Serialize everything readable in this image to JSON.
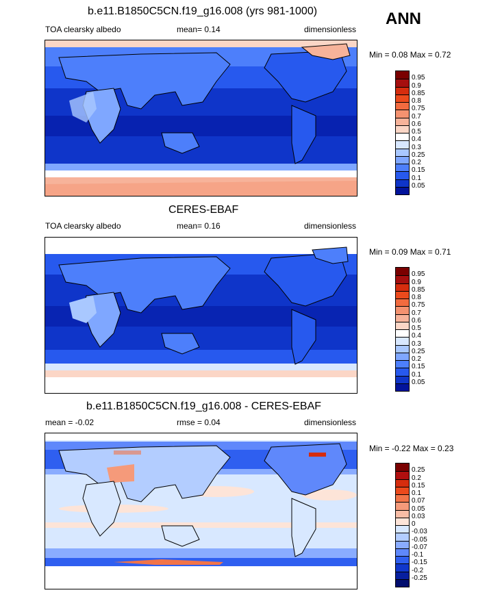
{
  "season_label": "ANN",
  "panels": [
    {
      "title": "b.e11.B1850C5CN.f19_g16.008 (yrs 981-1000)",
      "left_label": "TOA clearsky albedo",
      "mean_text": "mean=   0.14",
      "right_label": "dimensionless",
      "minmax_text": "Min =   0.08 Max =   0.72",
      "levels": [
        "0.95",
        "0.9",
        "0.85",
        "0.8",
        "0.75",
        "0.7",
        "0.6",
        "0.5",
        "0.4",
        "0.3",
        "0.25",
        "0.2",
        "0.15",
        "0.1",
        "0.05"
      ],
      "colors": [
        "#7a0000",
        "#a50f0f",
        "#d62d0e",
        "#ec4a1c",
        "#f26b3f",
        "#f49270",
        "#f7b39a",
        "#fbd6c6",
        "#ffffff",
        "#d8e8ff",
        "#a9c8ff",
        "#7fa7ff",
        "#4d7ffb",
        "#2759ee",
        "#0f35c9",
        "#02139b"
      ]
    },
    {
      "title": "CERES-EBAF",
      "left_label": "TOA clearsky albedo",
      "mean_text": "mean=   0.16",
      "right_label": "dimensionless",
      "minmax_text": "Min =   0.09 Max =   0.71",
      "levels": [
        "0.95",
        "0.9",
        "0.85",
        "0.8",
        "0.75",
        "0.7",
        "0.6",
        "0.5",
        "0.4",
        "0.3",
        "0.25",
        "0.2",
        "0.15",
        "0.1",
        "0.05"
      ],
      "colors": [
        "#7a0000",
        "#a50f0f",
        "#d62d0e",
        "#ec4a1c",
        "#f26b3f",
        "#f49270",
        "#f7b39a",
        "#fbd6c6",
        "#ffffff",
        "#d8e8ff",
        "#a9c8ff",
        "#7fa7ff",
        "#4d7ffb",
        "#2759ee",
        "#0f35c9",
        "#02139b"
      ]
    },
    {
      "title": "b.e11.B1850C5CN.f19_g16.008 - CERES-EBAF",
      "left_label": "mean =   -0.02",
      "mean_text": "rmse =   0.04",
      "right_label": "dimensionless",
      "minmax_text": "Min =   -0.22 Max =   0.23",
      "levels": [
        "0.25",
        "0.2",
        "0.15",
        "0.1",
        "0.07",
        "0.05",
        "0.03",
        "0",
        "-0.03",
        "-0.05",
        "-0.07",
        "-0.1",
        "-0.15",
        "-0.2",
        "-0.25"
      ],
      "colors": [
        "#7a0000",
        "#b00f0f",
        "#d62d0e",
        "#ec4a1c",
        "#f27448",
        "#f59a7a",
        "#f8bda6",
        "#fde4d8",
        "#d8e8ff",
        "#b3cdff",
        "#8aacff",
        "#5f88fb",
        "#2f5ff0",
        "#1037cc",
        "#071f9f",
        "#010d6e"
      ]
    }
  ],
  "chart_data": [
    {
      "type": "heatmap",
      "title": "b.e11.B1850C5CN.f19_g16.008 (yrs 981-1000)",
      "variable": "TOA clearsky albedo",
      "units": "dimensionless",
      "season": "ANN",
      "mean": 0.14,
      "min": 0.08,
      "max": 0.72,
      "contour_levels": [
        0.05,
        0.1,
        0.15,
        0.2,
        0.25,
        0.3,
        0.4,
        0.5,
        0.6,
        0.7,
        0.75,
        0.8,
        0.85,
        0.9,
        0.95
      ]
    },
    {
      "type": "heatmap",
      "title": "CERES-EBAF",
      "variable": "TOA clearsky albedo",
      "units": "dimensionless",
      "season": "ANN",
      "mean": 0.16,
      "min": 0.09,
      "max": 0.71,
      "contour_levels": [
        0.05,
        0.1,
        0.15,
        0.2,
        0.25,
        0.3,
        0.4,
        0.5,
        0.6,
        0.7,
        0.75,
        0.8,
        0.85,
        0.9,
        0.95
      ]
    },
    {
      "type": "heatmap",
      "title": "b.e11.B1850C5CN.f19_g16.008 - CERES-EBAF",
      "units": "dimensionless",
      "season": "ANN",
      "mean": -0.02,
      "rmse": 0.04,
      "min": -0.22,
      "max": 0.23,
      "contour_levels": [
        -0.25,
        -0.2,
        -0.15,
        -0.1,
        -0.07,
        -0.05,
        -0.03,
        0,
        0.03,
        0.05,
        0.07,
        0.1,
        0.15,
        0.2,
        0.25
      ]
    }
  ]
}
